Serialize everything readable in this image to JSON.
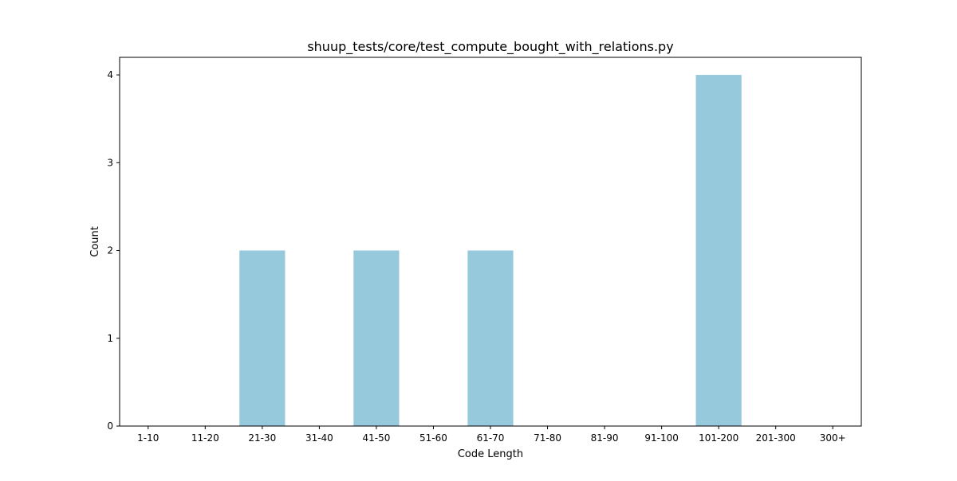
{
  "chart_data": {
    "type": "bar",
    "title": "shuup_tests/core/test_compute_bought_with_relations.py",
    "xlabel": "Code Length",
    "ylabel": "Count",
    "categories": [
      "1-10",
      "11-20",
      "21-30",
      "31-40",
      "41-50",
      "51-60",
      "61-70",
      "71-80",
      "81-90",
      "91-100",
      "101-200",
      "201-300",
      "300+"
    ],
    "values": [
      0,
      0,
      2,
      0,
      2,
      0,
      2,
      0,
      0,
      0,
      4,
      0,
      0
    ],
    "ylim": [
      0,
      4.2
    ],
    "yticks": [
      0,
      1,
      2,
      3,
      4
    ],
    "bar_color": "#96c9dc",
    "grid": false,
    "legend": "none"
  }
}
